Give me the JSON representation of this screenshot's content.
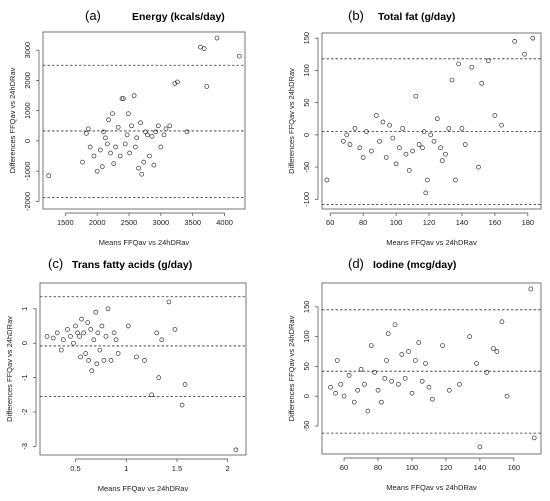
{
  "chart_data": [
    {
      "type": "scatter",
      "panel": "(a)",
      "title": "Energy (kcals/day)",
      "xlabel": "Means FFQav vs 24hDRav",
      "ylabel": "Differences FFQav vs 24hDRav",
      "xlim": [
        1150,
        4320
      ],
      "ylim": [
        -2250,
        3600
      ],
      "xticks": [
        1500,
        2000,
        2500,
        3000,
        3500,
        4000
      ],
      "yticks": [
        -2000,
        -1000,
        0,
        1000,
        2000,
        3000
      ],
      "reference_lines": [
        2500,
        330,
        -1870
      ],
      "points": [
        [
          1240,
          -1150
        ],
        [
          1770,
          -700
        ],
        [
          1830,
          250
        ],
        [
          1860,
          400
        ],
        [
          1890,
          -200
        ],
        [
          1950,
          -500
        ],
        [
          2000,
          -1000
        ],
        [
          2050,
          -300
        ],
        [
          2080,
          -850
        ],
        [
          2100,
          300
        ],
        [
          2130,
          100
        ],
        [
          2160,
          -100
        ],
        [
          2180,
          700
        ],
        [
          2210,
          -400
        ],
        [
          2240,
          900
        ],
        [
          2260,
          -750
        ],
        [
          2290,
          -200
        ],
        [
          2330,
          450
        ],
        [
          2360,
          -500
        ],
        [
          2390,
          1400
        ],
        [
          2410,
          1400
        ],
        [
          2440,
          -100
        ],
        [
          2470,
          200
        ],
        [
          2490,
          900
        ],
        [
          2510,
          -400
        ],
        [
          2540,
          500
        ],
        [
          2580,
          1500
        ],
        [
          2600,
          -200
        ],
        [
          2620,
          100
        ],
        [
          2650,
          -900
        ],
        [
          2680,
          600
        ],
        [
          2700,
          -1100
        ],
        [
          2730,
          -700
        ],
        [
          2760,
          300
        ],
        [
          2790,
          200
        ],
        [
          2820,
          -500
        ],
        [
          2860,
          150
        ],
        [
          2890,
          -800
        ],
        [
          2920,
          300
        ],
        [
          2960,
          500
        ],
        [
          3000,
          -200
        ],
        [
          3050,
          200
        ],
        [
          3080,
          400
        ],
        [
          3140,
          500
        ],
        [
          3220,
          1900
        ],
        [
          3260,
          1950
        ],
        [
          3410,
          300
        ],
        [
          3620,
          3100
        ],
        [
          3680,
          3050
        ],
        [
          3720,
          1800
        ],
        [
          3880,
          3400
        ],
        [
          4230,
          2800
        ]
      ]
    },
    {
      "type": "scatter",
      "panel": "(b)",
      "title": "Total fat (g/day)",
      "xlabel": "Means FFQav vs 24hDRav",
      "ylabel": "Differences FFQav vs 24hDRav",
      "xlim": [
        55,
        188
      ],
      "ylim": [
        -115,
        158
      ],
      "xticks": [
        60,
        80,
        100,
        120,
        140,
        160,
        180
      ],
      "yticks": [
        -100,
        -50,
        0,
        50,
        100,
        150
      ],
      "reference_lines": [
        118,
        5,
        -108
      ],
      "points": [
        [
          58,
          -70
        ],
        [
          68,
          -10
        ],
        [
          70,
          0
        ],
        [
          72,
          -15
        ],
        [
          75,
          10
        ],
        [
          78,
          -20
        ],
        [
          80,
          -35
        ],
        [
          82,
          5
        ],
        [
          85,
          -25
        ],
        [
          88,
          30
        ],
        [
          90,
          -10
        ],
        [
          92,
          20
        ],
        [
          94,
          -35
        ],
        [
          96,
          15
        ],
        [
          98,
          -5
        ],
        [
          100,
          -45
        ],
        [
          102,
          -20
        ],
        [
          104,
          10
        ],
        [
          106,
          -30
        ],
        [
          108,
          -55
        ],
        [
          110,
          -25
        ],
        [
          112,
          60
        ],
        [
          114,
          -15
        ],
        [
          116,
          -20
        ],
        [
          117,
          5
        ],
        [
          118,
          -90
        ],
        [
          119,
          -70
        ],
        [
          121,
          0
        ],
        [
          123,
          -10
        ],
        [
          125,
          25
        ],
        [
          127,
          -20
        ],
        [
          128,
          -40
        ],
        [
          130,
          -30
        ],
        [
          132,
          10
        ],
        [
          134,
          85
        ],
        [
          136,
          -70
        ],
        [
          138,
          110
        ],
        [
          140,
          10
        ],
        [
          142,
          -15
        ],
        [
          146,
          105
        ],
        [
          150,
          -50
        ],
        [
          152,
          80
        ],
        [
          156,
          115
        ],
        [
          160,
          30
        ],
        [
          164,
          15
        ],
        [
          172,
          145
        ],
        [
          178,
          125
        ],
        [
          183,
          150
        ]
      ]
    },
    {
      "type": "scatter",
      "panel": "(c)",
      "title": "Trans fatty acids (g/day)",
      "xlabel": "Means FFQav vs 24hDRav",
      "ylabel": "Differences FFQav vs 24hDRav",
      "xlim": [
        0.15,
        2.18
      ],
      "ylim": [
        -3.25,
        1.75
      ],
      "xticks": [
        0.5,
        1.0,
        1.5,
        2.0
      ],
      "yticks": [
        -3,
        -2,
        -1,
        0,
        1
      ],
      "reference_lines": [
        1.35,
        -0.08,
        -1.55
      ],
      "points": [
        [
          0.22,
          0.2
        ],
        [
          0.28,
          0.15
        ],
        [
          0.32,
          0.3
        ],
        [
          0.36,
          -0.2
        ],
        [
          0.38,
          0.1
        ],
        [
          0.42,
          0.4
        ],
        [
          0.45,
          0.2
        ],
        [
          0.48,
          0.0
        ],
        [
          0.5,
          0.5
        ],
        [
          0.52,
          0.3
        ],
        [
          0.54,
          0.2
        ],
        [
          0.55,
          -0.4
        ],
        [
          0.56,
          0.7
        ],
        [
          0.58,
          0.3
        ],
        [
          0.6,
          -0.3
        ],
        [
          0.62,
          0.6
        ],
        [
          0.63,
          -0.5
        ],
        [
          0.65,
          0.4
        ],
        [
          0.66,
          -0.8
        ],
        [
          0.68,
          0.1
        ],
        [
          0.7,
          0.9
        ],
        [
          0.71,
          -0.6
        ],
        [
          0.72,
          0.3
        ],
        [
          0.74,
          -0.2
        ],
        [
          0.76,
          0.5
        ],
        [
          0.78,
          -0.5
        ],
        [
          0.8,
          0.2
        ],
        [
          0.82,
          1.0
        ],
        [
          0.85,
          -0.5
        ],
        [
          0.88,
          0.3
        ],
        [
          0.9,
          0.1
        ],
        [
          0.92,
          -0.3
        ],
        [
          1.02,
          0.5
        ],
        [
          1.1,
          -0.4
        ],
        [
          1.18,
          -0.5
        ],
        [
          1.25,
          -1.5
        ],
        [
          1.3,
          0.3
        ],
        [
          1.32,
          -1.0
        ],
        [
          1.35,
          0.1
        ],
        [
          1.42,
          1.2
        ],
        [
          1.48,
          0.4
        ],
        [
          1.55,
          -1.8
        ],
        [
          1.58,
          -1.2
        ],
        [
          2.08,
          -3.1
        ]
      ]
    },
    {
      "type": "scatter",
      "panel": "(d)",
      "title": "Iodine (mcg/day)",
      "xlabel": "Means FFQav vs 24hDRav",
      "ylabel": "Differences FFQav vs 24hDRav",
      "xlim": [
        47,
        176
      ],
      "ylim": [
        -97,
        190
      ],
      "xticks": [
        60,
        80,
        100,
        120,
        140,
        160
      ],
      "yticks": [
        -50,
        0,
        50,
        100,
        150
      ],
      "reference_lines": [
        145,
        42,
        -62
      ],
      "points": [
        [
          52,
          15
        ],
        [
          55,
          5
        ],
        [
          56,
          60
        ],
        [
          58,
          20
        ],
        [
          60,
          0
        ],
        [
          63,
          35
        ],
        [
          66,
          -10
        ],
        [
          68,
          10
        ],
        [
          70,
          45
        ],
        [
          72,
          20
        ],
        [
          74,
          -25
        ],
        [
          76,
          85
        ],
        [
          78,
          40
        ],
        [
          80,
          10
        ],
        [
          82,
          -10
        ],
        [
          84,
          30
        ],
        [
          85,
          60
        ],
        [
          86,
          105
        ],
        [
          88,
          25
        ],
        [
          90,
          120
        ],
        [
          92,
          20
        ],
        [
          94,
          70
        ],
        [
          96,
          30
        ],
        [
          98,
          75
        ],
        [
          100,
          5
        ],
        [
          102,
          60
        ],
        [
          104,
          90
        ],
        [
          106,
          25
        ],
        [
          108,
          55
        ],
        [
          110,
          15
        ],
        [
          112,
          -5
        ],
        [
          118,
          85
        ],
        [
          122,
          10
        ],
        [
          128,
          20
        ],
        [
          134,
          100
        ],
        [
          138,
          55
        ],
        [
          140,
          -85
        ],
        [
          144,
          40
        ],
        [
          148,
          80
        ],
        [
          150,
          75
        ],
        [
          153,
          125
        ],
        [
          156,
          0
        ],
        [
          170,
          180
        ],
        [
          172,
          -70
        ]
      ]
    }
  ]
}
